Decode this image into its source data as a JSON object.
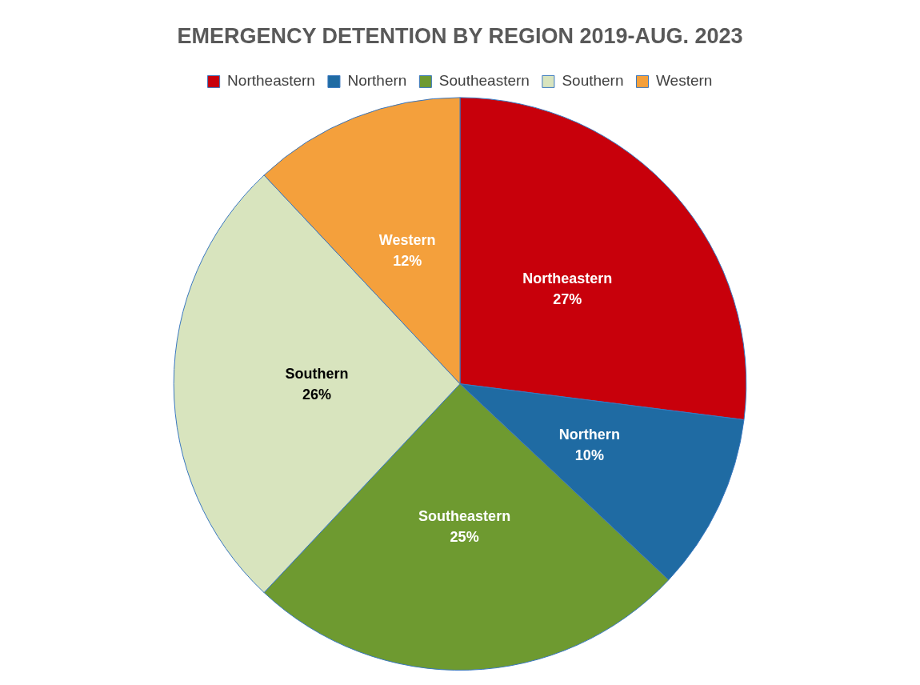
{
  "chart_data": {
    "type": "pie",
    "title": "EMERGENCY DETENTION BY REGION 2019-AUG. 2023",
    "categories": [
      "Northeastern",
      "Northern",
      "Southeastern",
      "Southern",
      "Western"
    ],
    "values": [
      27,
      10,
      25,
      26,
      12
    ],
    "value_labels": [
      "27%",
      "10%",
      "25%",
      "26%",
      "12%"
    ],
    "colors": [
      "#c8000b",
      "#1f6ba3",
      "#6e9a30",
      "#d8e4be",
      "#f4a03c"
    ],
    "legend": "top"
  }
}
